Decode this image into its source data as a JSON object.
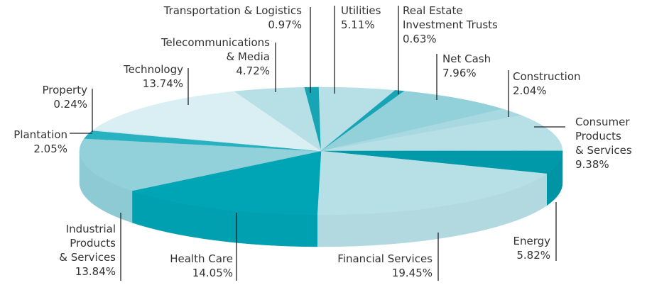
{
  "chart_data": {
    "type": "pie3d",
    "categories": [
      "Transportation & Logistics",
      "Utilities",
      "Real Estate\nInvestment Trusts",
      "Net Cash",
      "Construction",
      "Consumer\nProducts\n& Services",
      "Energy",
      "Financial Services",
      "Health Care",
      "Industrial\nProducts\n& Services",
      "Plantation",
      "Property",
      "Technology",
      "Telecommunications\n& Media"
    ],
    "values": [
      0.97,
      5.11,
      0.63,
      7.96,
      2.04,
      9.38,
      5.82,
      19.45,
      14.05,
      13.84,
      2.05,
      0.24,
      13.74,
      4.72
    ],
    "value_labels": [
      "0.97%",
      "5.11%",
      "0.63%",
      "7.96%",
      "2.04%",
      "9.38%",
      "5.82%",
      "19.45%",
      "14.05%",
      "13.84%",
      "2.05%",
      "0.24%",
      "13.74%",
      "4.72%"
    ],
    "colors": [
      "#17a5b5",
      "#b6e0e6",
      "#17a5b5",
      "#92d0da",
      "#a9d9e0",
      "#b6e0e6",
      "#0099a9",
      "#b6e0e6",
      "#00a5b5",
      "#92d0da",
      "#27b1c1",
      "#c6e7ec",
      "#daeff3",
      "#b6e0e6"
    ]
  }
}
